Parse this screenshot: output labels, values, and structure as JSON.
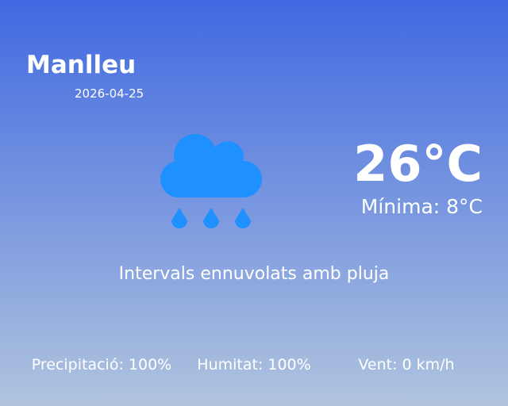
{
  "city": "Manlleu",
  "date": "2026-04-25",
  "weather_icon": "cloud-rain-icon",
  "icon_color": "#1e90ff",
  "temperature": "26°C",
  "minimum": "Mínima: 8°C",
  "description": "Intervals ennuvolats amb pluja",
  "stats": {
    "precipitation": "Precipitació: 100%",
    "humidity": "Humitat: 100%",
    "wind": "Vent: 0 km/h"
  }
}
